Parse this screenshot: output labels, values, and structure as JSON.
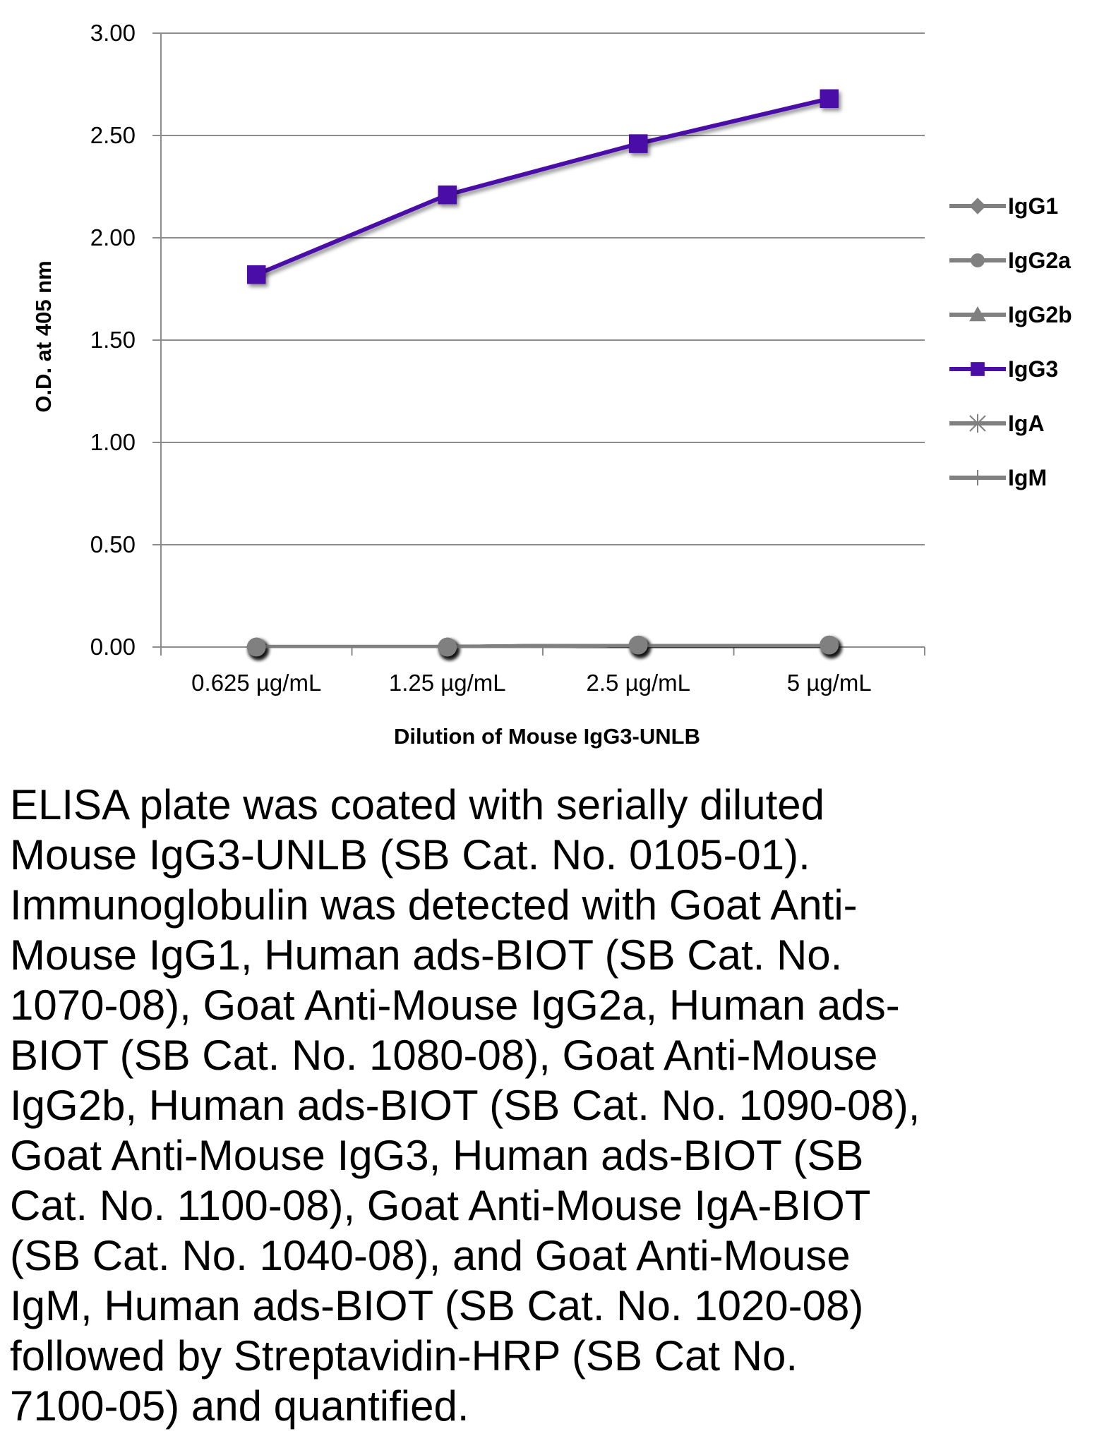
{
  "chart_data": {
    "type": "line",
    "xlabel": "Dilution of Mouse IgG3-UNLB",
    "ylabel": "O.D. at 405 nm",
    "categories": [
      "0.625 µg/mL",
      "1.25 µg/mL",
      "2.5 µg/mL",
      "5 µg/mL"
    ],
    "ylim": [
      0,
      3
    ],
    "yticks": [
      "0.00",
      "0.50",
      "1.00",
      "1.50",
      "2.00",
      "2.50",
      "3.00"
    ],
    "grid": true,
    "legend_position": "right",
    "series": [
      {
        "name": "IgG1",
        "marker": "diamond",
        "color": "#808080",
        "values": [
          0.0,
          0.0,
          0.01,
          0.01
        ]
      },
      {
        "name": "IgG2a",
        "marker": "circle",
        "color": "#808080",
        "values": [
          0.0,
          0.0,
          0.01,
          0.01
        ]
      },
      {
        "name": "IgG2b",
        "marker": "triangle",
        "color": "#808080",
        "values": [
          0.0,
          0.0,
          0.01,
          0.01
        ]
      },
      {
        "name": "IgG3",
        "marker": "square",
        "color": "#4b0fa8",
        "values": [
          1.82,
          2.21,
          2.46,
          2.68
        ]
      },
      {
        "name": "IgA",
        "marker": "star",
        "color": "#808080",
        "values": [
          0.0,
          0.0,
          0.01,
          0.01
        ]
      },
      {
        "name": "IgM",
        "marker": "plus",
        "color": "#808080",
        "values": [
          0.0,
          0.0,
          0.01,
          0.01
        ]
      }
    ]
  },
  "caption": "ELISA plate was coated with serially diluted Mouse IgG3-UNLB (SB Cat. No. 0105-01). Immunoglobulin was detected with Goat Anti-Mouse IgG1, Human ads-BIOT (SB Cat. No. 1070-08), Goat Anti-Mouse IgG2a, Human ads-BIOT (SB Cat. No. 1080-08), Goat Anti-Mouse IgG2b, Human ads-BIOT (SB Cat. No. 1090-08), Goat Anti-Mouse IgG3, Human ads-BIOT (SB Cat. No. 1100-08), Goat Anti-Mouse IgA-BIOT (SB Cat. No. 1040-08), and Goat Anti-Mouse IgM, Human ads-BIOT (SB Cat. No. 1020-08) followed by Streptavidin-HRP (SB Cat No. 7100-05) and quantified.",
  "caption_lines": [
    "ELISA plate was coated with serially diluted",
    "Mouse IgG3-UNLB (SB Cat. No. 0105-01).",
    "Immunoglobulin was detected with Goat Anti-",
    "Mouse IgG1, Human ads-BIOT (SB Cat. No.",
    "1070-08), Goat Anti-Mouse IgG2a, Human ads-",
    "BIOT (SB Cat. No. 1080-08), Goat Anti-Mouse",
    "IgG2b, Human ads-BIOT (SB Cat. No. 1090-08),",
    "Goat Anti-Mouse IgG3, Human ads-BIOT (SB",
    "Cat. No. 1100-08), Goat Anti-Mouse IgA-BIOT",
    "(SB Cat. No. 1040-08), and Goat Anti-Mouse",
    "IgM, Human ads-BIOT (SB Cat. No. 1020-08)",
    "followed by Streptavidin-HRP (SB Cat No.",
    "7100-05) and quantified."
  ]
}
